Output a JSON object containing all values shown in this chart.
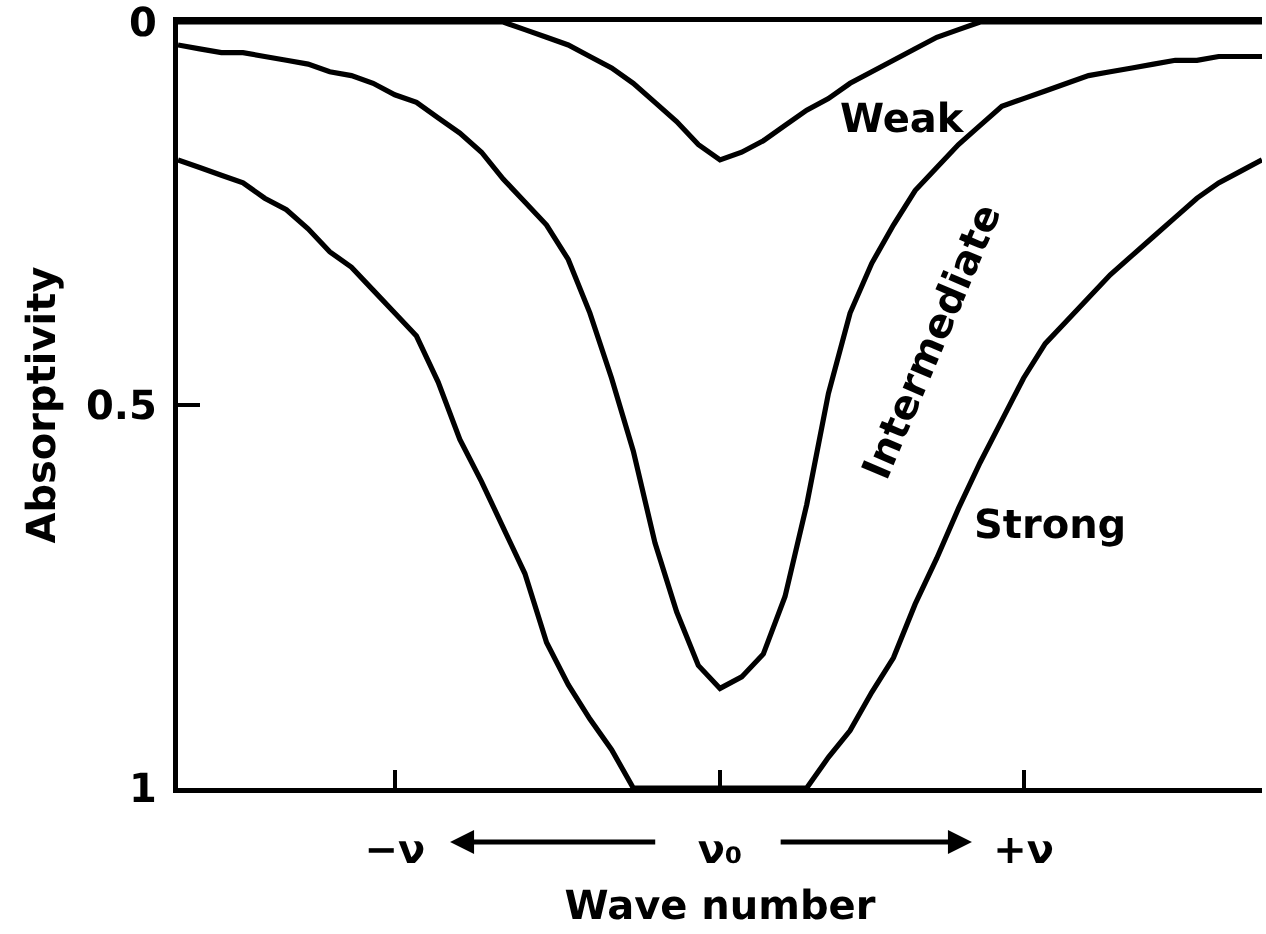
{
  "chart_data": {
    "type": "line",
    "xlabel": "Wave number",
    "ylabel": "Absorptivity",
    "categories": [
      null,
      null,
      null,
      null,
      null,
      null,
      null,
      null,
      null,
      null,
      "−ν",
      null,
      null,
      null,
      null,
      null,
      null,
      null,
      null,
      null,
      null,
      null,
      null,
      null,
      null,
      "ν₀",
      null,
      null,
      null,
      null,
      null,
      null,
      null,
      null,
      null,
      null,
      null,
      null,
      null,
      "+ν",
      null,
      null,
      null,
      null,
      null,
      null,
      null,
      null,
      null,
      null,
      null
    ],
    "ylim": [
      1,
      0
    ],
    "yticks": [
      0,
      0.5,
      1
    ],
    "grid": false,
    "legend": false,
    "series": [
      {
        "name": "Weak",
        "color": "#000000",
        "values": [
          0,
          0,
          0,
          0,
          0,
          0,
          0,
          0,
          0,
          0,
          0,
          0,
          0,
          0,
          0,
          0,
          0.01,
          0.02,
          0.03,
          0.045,
          0.06,
          0.08,
          0.105,
          0.13,
          0.16,
          0.18,
          0.17,
          0.155,
          0.135,
          0.115,
          0.1,
          0.08,
          0.065,
          0.05,
          0.035,
          0.02,
          0.01,
          0,
          0,
          0,
          0,
          0,
          0,
          0,
          0,
          0,
          0,
          0,
          0,
          0,
          0
        ]
      },
      {
        "name": "Intermediate",
        "color": "#000000",
        "values": [
          0.03,
          0.035,
          0.04,
          0.04,
          0.045,
          0.05,
          0.055,
          0.065,
          0.07,
          0.08,
          0.095,
          0.105,
          0.125,
          0.145,
          0.17,
          0.205,
          0.235,
          0.265,
          0.31,
          0.38,
          0.465,
          0.56,
          0.68,
          0.77,
          0.84,
          0.87,
          0.855,
          0.825,
          0.75,
          0.63,
          0.485,
          0.38,
          0.315,
          0.265,
          0.22,
          0.19,
          0.16,
          0.135,
          0.11,
          0.1,
          0.09,
          0.08,
          0.07,
          0.065,
          0.06,
          0.055,
          0.05,
          0.05,
          0.045,
          0.045,
          0.045
        ]
      },
      {
        "name": "Strong",
        "color": "#000000",
        "values": [
          0.18,
          0.19,
          0.2,
          0.21,
          0.23,
          0.245,
          0.27,
          0.3,
          0.32,
          0.35,
          0.38,
          0.41,
          0.47,
          0.545,
          0.6,
          0.66,
          0.72,
          0.81,
          0.865,
          0.91,
          0.95,
          1,
          1,
          1,
          1,
          1,
          1,
          1,
          1,
          1,
          0.96,
          0.925,
          0.875,
          0.83,
          0.76,
          0.7,
          0.635,
          0.575,
          0.52,
          0.465,
          0.42,
          0.39,
          0.36,
          0.33,
          0.305,
          0.28,
          0.255,
          0.23,
          0.21,
          0.195,
          0.18
        ]
      }
    ]
  }
}
